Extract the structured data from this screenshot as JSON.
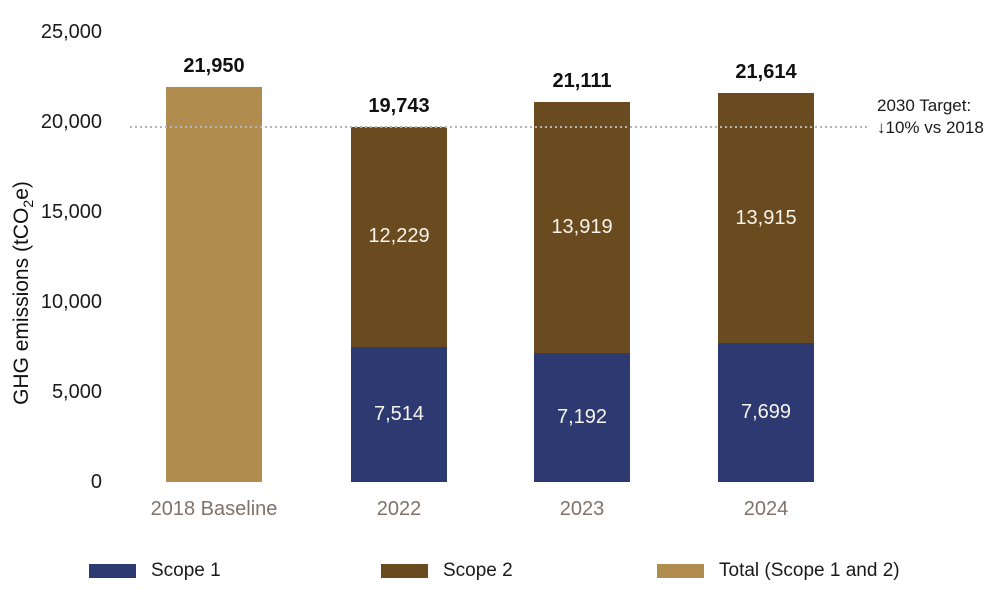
{
  "chart_data": {
    "type": "bar",
    "stacked": true,
    "title": "",
    "xlabel": "",
    "ylabel": "GHG emissions (tCO2e)",
    "ylabel_parts": {
      "pre": "GHG emissions (tCO",
      "sub": "2",
      "post": "e)"
    },
    "ylim": [
      0,
      25000
    ],
    "yticks": [
      0,
      5000,
      10000,
      15000,
      20000,
      25000
    ],
    "ytick_labels": [
      "0",
      "5,000",
      "10,000",
      "15,000",
      "20,000",
      "25,000"
    ],
    "grid": false,
    "legend_position": "bottom",
    "categories": [
      "2018 Baseline",
      "2022",
      "2023",
      "2024"
    ],
    "series": [
      {
        "name": "Scope 1",
        "color": "#2d3a72",
        "values": [
          null,
          7514,
          7192,
          7699
        ],
        "labels": [
          "",
          "7,514",
          "7,192",
          "7,699"
        ]
      },
      {
        "name": "Scope 2",
        "color": "#6a4a1f",
        "values": [
          null,
          12229,
          13919,
          13915
        ],
        "labels": [
          "",
          "12,229",
          "13,919",
          "13,915"
        ]
      },
      {
        "name": "Total (Scope 1 and 2)",
        "color": "#b18c4f",
        "values": [
          21950,
          null,
          null,
          null
        ],
        "labels": [
          "",
          "",
          "",
          ""
        ]
      }
    ],
    "totals": [
      21950,
      19743,
      21111,
      21614
    ],
    "total_labels": [
      "21,950",
      "19,743",
      "21,111",
      "21,614"
    ],
    "target_line": {
      "value": 19755,
      "color": "#b5b5b5",
      "label_line1": "2030 Target:",
      "label_line2": "↓10% vs 2018"
    },
    "legend": [
      {
        "label": "Scope 1",
        "color": "#2d3a72"
      },
      {
        "label": "Scope 2",
        "color": "#6a4a1f"
      },
      {
        "label": "Total (Scope 1 and 2)",
        "color": "#b18c4f"
      }
    ]
  }
}
